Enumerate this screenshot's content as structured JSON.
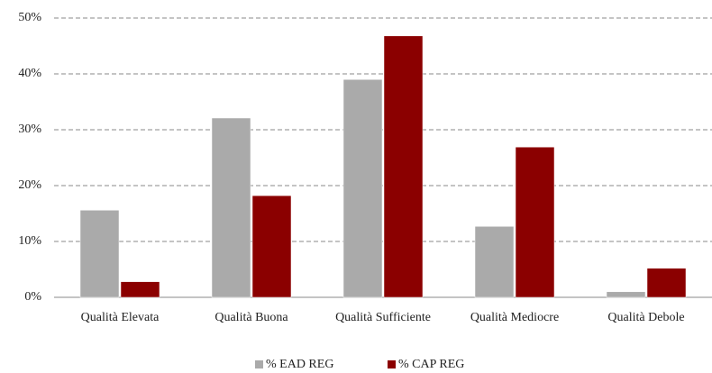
{
  "chart_data": {
    "type": "bar",
    "categories": [
      "Qualità Elevata",
      "Qualità Buona",
      "Qualità Sufficiente",
      "Qualità Mediocre",
      "Qualità Debole"
    ],
    "series": [
      {
        "name": "% EAD REG",
        "color": "#aaaaaa",
        "values": [
          15.6,
          32.1,
          39.0,
          12.7,
          1.0
        ]
      },
      {
        "name": "% CAP REG",
        "color": "#8b0000",
        "values": [
          2.8,
          18.2,
          46.8,
          26.9,
          5.2
        ]
      }
    ],
    "ylim": [
      0,
      50
    ],
    "yticks": [
      {
        "value": 0,
        "label": "0%"
      },
      {
        "value": 10,
        "label": "10%"
      },
      {
        "value": 20,
        "label": "20%"
      },
      {
        "value": 30,
        "label": "30%"
      },
      {
        "value": 40,
        "label": "40%"
      },
      {
        "value": 50,
        "label": "50%"
      }
    ],
    "grid": true,
    "legend": "bottom"
  }
}
